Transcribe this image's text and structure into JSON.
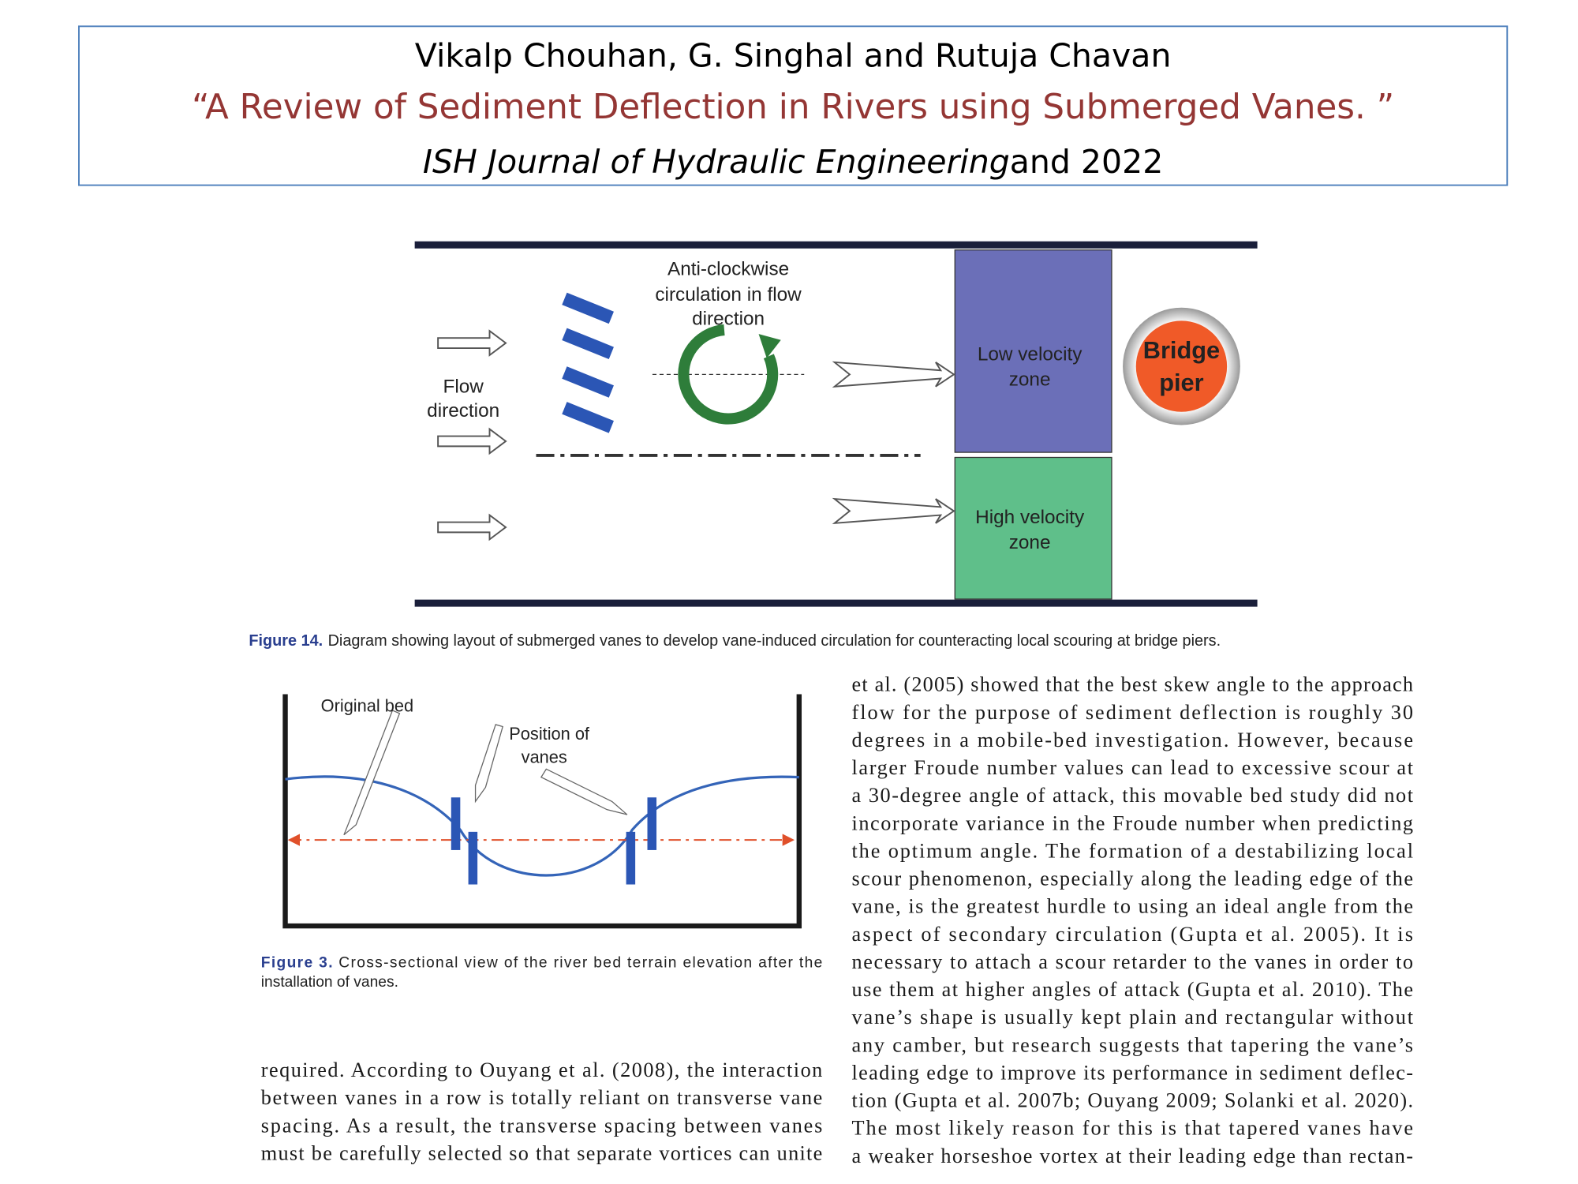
{
  "header": {
    "authors": "Vikalp Chouhan, G. Singhal and Rutuja Chavan",
    "title": "“A Review of Sediment Deflection in Rivers using Submerged Vanes. ”",
    "journal": "ISH Journal of Hydraulic Engineering",
    "journal_suffix": "and 2022"
  },
  "figure14": {
    "circulation_label": [
      "Anti-clockwise",
      "circulation in flow",
      "direction"
    ],
    "flow_label": [
      "Flow",
      "direction"
    ],
    "low_zone": [
      "Low velocity",
      "zone"
    ],
    "high_zone": [
      "High velocity",
      "zone"
    ],
    "pier": [
      "Bridge",
      "pier"
    ],
    "caption_label": "Figure 14.",
    "caption_text": "Diagram showing layout of submerged vanes to develop vane-induced circulation for counteracting local scouring at bridge piers."
  },
  "figure3": {
    "original_bed": "Original bed",
    "vanes_label": [
      "Position of",
      "vanes"
    ],
    "caption_label": "Figure 3.",
    "caption_lines": [
      "Cross-sectional view of the river bed terrain elevation after the",
      "installation of vanes."
    ]
  },
  "body": {
    "left_column": [
      "required. According to Ouyang et al. (2008), the interaction",
      "between vanes in a row is totally reliant on transverse vane",
      "spacing. As a result, the transverse spacing between vanes",
      "must be carefully selected so that separate vortices can unite"
    ],
    "right_column": [
      "et al. (2005) showed that the best skew angle to the approach",
      "flow for the purpose of sediment deflection is roughly 30",
      "degrees in a mobile-bed investigation. However, because",
      "larger Froude number values can lead to excessive scour at",
      "a 30-degree angle of attack, this movable bed study did not",
      "incorporate variance in the Froude number when predicting",
      "the optimum angle. The formation of a destabilizing local",
      "scour phenomenon, especially along the leading edge of the",
      "vane, is the greatest hurdle to using an ideal angle from the",
      "aspect of secondary circulation (Gupta et al. 2005). It is",
      "necessary to attach a scour retarder to the vanes in order to",
      "use them at higher angles of attack (Gupta et al. 2010). The",
      "vane’s shape is usually kept plain and rectangular without",
      "any camber, but research suggests that tapering the vane’s",
      "leading edge to improve its performance in sediment deflec-",
      "tion (Gupta et al. 2007b; Ouyang 2009; Solanki et al. 2020).",
      "The most likely reason for this is that tapered vanes have",
      "a weaker horseshoe vortex at their leading edge than rectan-"
    ]
  }
}
